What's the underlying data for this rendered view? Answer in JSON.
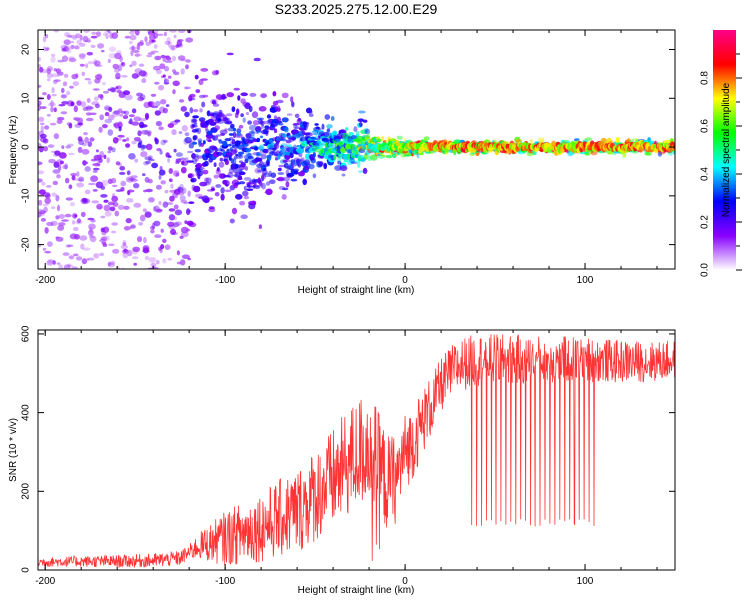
{
  "figure": {
    "title": "S233.2025.275.12.00.E29"
  },
  "chart_data": [
    {
      "type": "heatmap",
      "title": "",
      "xlabel": "Height of straight line (km)",
      "ylabel": "Frequency (Hz)",
      "xlim": [
        -204,
        150
      ],
      "ylim": [
        -25,
        24
      ],
      "x_ticks": [
        -200,
        -100,
        0,
        100
      ],
      "y_ticks": [
        -20,
        -10,
        0,
        10,
        20
      ],
      "colorbar": {
        "label": "Normalized spectral amplitude",
        "range": [
          0,
          1
        ],
        "ticks": [
          0.0,
          0.2,
          0.4,
          0.6,
          0.8
        ],
        "colormap": [
          "#ffffff",
          "#8800ff",
          "#0000ff",
          "#00ffff",
          "#00ff00",
          "#ffff00",
          "#ff0000",
          "#ff0088"
        ]
      },
      "description_points": [
        {
          "x_range": [
            -204,
            -120
          ],
          "freq_spread": 24,
          "amplitude": 0.1
        },
        {
          "x_range": [
            -120,
            -60
          ],
          "freq_spread": 12,
          "amplitude": 0.22
        },
        {
          "x_range": [
            -60,
            -20
          ],
          "freq_spread": 5,
          "amplitude": 0.35
        },
        {
          "x_range": [
            -20,
            10
          ],
          "freq_spread": 2,
          "amplitude": 0.75
        },
        {
          "x_range": [
            10,
            150
          ],
          "freq_spread": 1,
          "amplitude": 0.85
        }
      ]
    },
    {
      "type": "line",
      "title": "",
      "xlabel": "Height of straight line (km)",
      "ylabel": "SNR (10 * v/v)",
      "xlim": [
        -204,
        150
      ],
      "ylim": [
        0,
        610
      ],
      "x_ticks": [
        -200,
        -100,
        0,
        100
      ],
      "y_ticks": [
        0,
        200,
        400,
        600
      ],
      "color": "#ff3333",
      "series": [
        {
          "points": [
            [
              -204,
              20
            ],
            [
              -180,
              22
            ],
            [
              -160,
              22
            ],
            [
              -140,
              24
            ],
            [
              -125,
              30
            ],
            [
              -115,
              60
            ],
            [
              -100,
              80
            ],
            [
              -90,
              95
            ],
            [
              -80,
              110
            ],
            [
              -70,
              130
            ],
            [
              -60,
              150
            ],
            [
              -50,
              190
            ],
            [
              -40,
              230
            ],
            [
              -30,
              280
            ],
            [
              -20,
              320
            ],
            [
              -10,
              220
            ],
            [
              -5,
              230
            ],
            [
              0,
              300
            ],
            [
              5,
              330
            ],
            [
              10,
              380
            ],
            [
              15,
              420
            ],
            [
              20,
              470
            ],
            [
              25,
              500
            ],
            [
              30,
              520
            ],
            [
              40,
              535
            ],
            [
              60,
              535
            ],
            [
              80,
              535
            ],
            [
              100,
              535
            ],
            [
              120,
              530
            ],
            [
              140,
              530
            ],
            [
              150,
              535
            ]
          ],
          "noise_amplitude": [
            [
              -204,
              12
            ],
            [
              -120,
              20
            ],
            [
              -100,
              70
            ],
            [
              -60,
              110
            ],
            [
              -20,
              150
            ],
            [
              0,
              100
            ],
            [
              20,
              70
            ],
            [
              150,
              50
            ]
          ],
          "dropouts": {
            "x_range": [
              37,
              105
            ],
            "count": 26,
            "min_value": 110
          }
        }
      ]
    }
  ]
}
